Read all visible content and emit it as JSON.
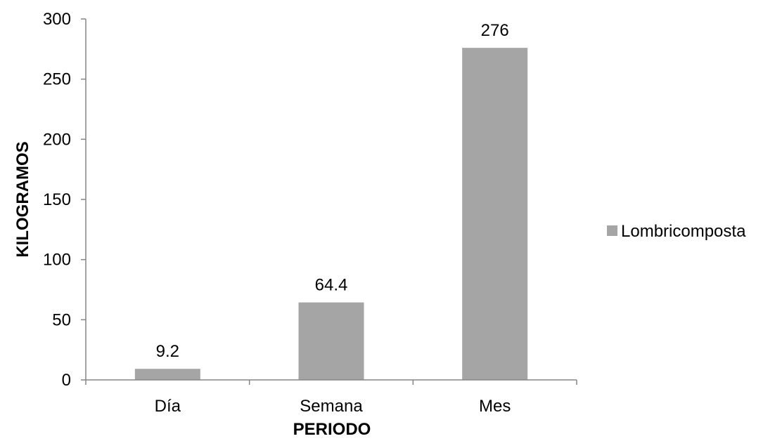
{
  "chart_data": {
    "type": "bar",
    "categories": [
      "Día",
      "Semana",
      "Mes"
    ],
    "series": [
      {
        "name": "Lombricomposta",
        "values": [
          9.2,
          64.4,
          276
        ],
        "data_labels": [
          "9.2",
          "64.4",
          "276"
        ],
        "color": "#a5a5a5"
      }
    ],
    "xlabel": "PERIODO",
    "ylabel": "KILOGRAMOS",
    "ylim": [
      0,
      300
    ],
    "yticks": [
      0,
      50,
      100,
      150,
      200,
      250,
      300
    ],
    "ytick_labels": [
      "0",
      "50",
      "100",
      "150",
      "200",
      "250",
      "300"
    ],
    "grid": false,
    "legend_position": "right",
    "axis_color": "#868686"
  }
}
